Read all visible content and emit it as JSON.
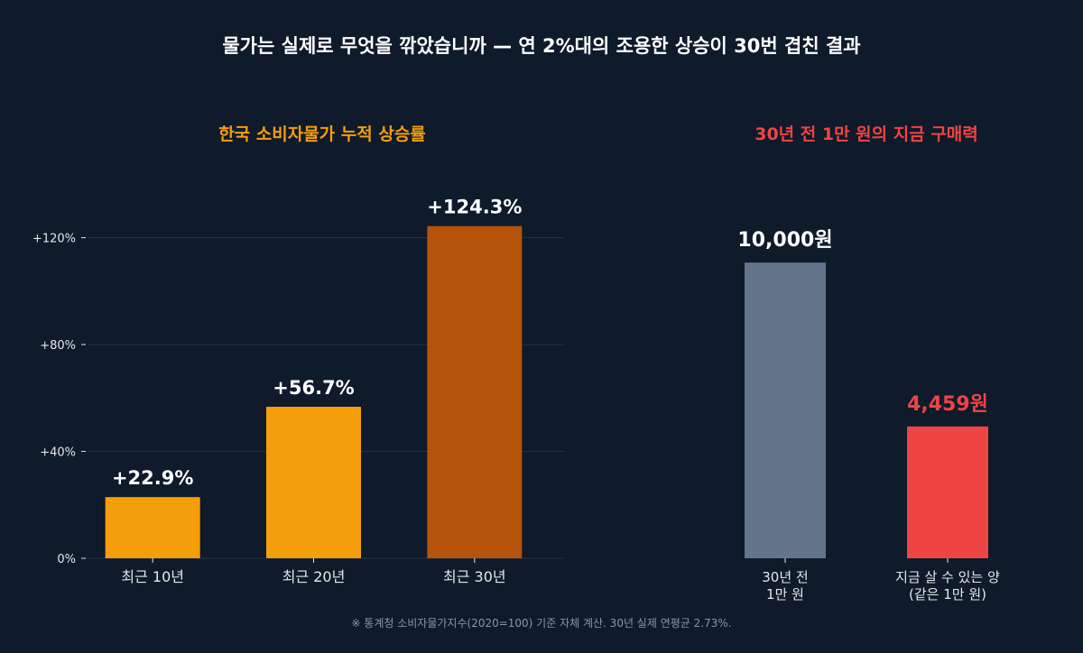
{
  "title": "물가는 실제로 무엇을 깎았습니까 — 연 2%대의 조용한 상승이 30번 겹친 결과",
  "footnote": "※ 통계청 소비자물가지수(2020=100) 기준 자체 계산. 30년 실제 연평균 2.73%.",
  "colors": {
    "background": "#0f1a2a",
    "left_title": "#f59e0b",
    "right_title": "#ef4444",
    "bar_10y": "#f59e0b",
    "bar_20y": "#f59e0b",
    "bar_30y": "#b45309",
    "bar_then": "#64748b",
    "bar_now": "#ef4444",
    "grid": "#253142",
    "tick_text": "#e5e7eb",
    "footnote": "#8b95a5"
  },
  "chart_data": [
    {
      "type": "bar",
      "title": "한국 소비자물가 누적 상승률",
      "categories": [
        "최근 10년",
        "최근 20년",
        "최근 30년"
      ],
      "values": [
        22.9,
        56.7,
        124.3
      ],
      "value_labels": [
        "+22.9%",
        "+56.7%",
        "+124.3%"
      ],
      "ylim": [
        0,
        135
      ],
      "yticks": [
        0,
        40,
        80,
        120
      ],
      "ytick_labels": [
        "0%",
        "+40%",
        "+80%",
        "+120%"
      ],
      "grid": true
    },
    {
      "type": "bar",
      "title": "30년 전 1만 원의 지금 구매력",
      "categories": [
        "30년 전\n1만 원",
        "지금 살 수 있는 양\n(같은 1만 원)"
      ],
      "values": [
        10000,
        4459
      ],
      "value_labels": [
        "10,000원",
        "4,459원"
      ],
      "ylim": [
        0,
        12200
      ],
      "grid": false
    }
  ]
}
